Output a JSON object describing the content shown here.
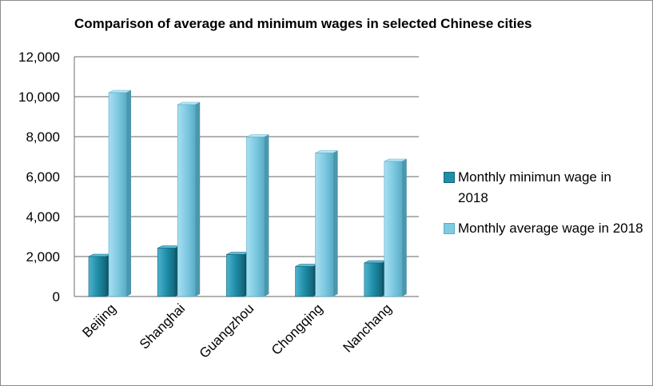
{
  "chart_data": {
    "type": "bar",
    "title": "Comparison of average and minimum wages in selected Chinese cities",
    "xlabel": "",
    "ylabel": "",
    "categories": [
      "Beijing",
      "Shanghai",
      "Guangzhou",
      "Chongqing",
      "Nanchang"
    ],
    "series": [
      {
        "name": "Monthly minimun wage in 2018",
        "values": [
          2000,
          2420,
          2100,
          1500,
          1680
        ],
        "color": "#1f8fa9"
      },
      {
        "name": "Monthly average wage in 2018",
        "values": [
          10200,
          9600,
          7980,
          7180,
          6760
        ],
        "color": "#7fcbe2"
      }
    ],
    "ylim": [
      0,
      12000
    ],
    "yticks": [
      "0",
      "2,000",
      "4,000",
      "6,000",
      "8,000",
      "10,000",
      "12,000"
    ],
    "grid": true,
    "legend_position": "right"
  }
}
